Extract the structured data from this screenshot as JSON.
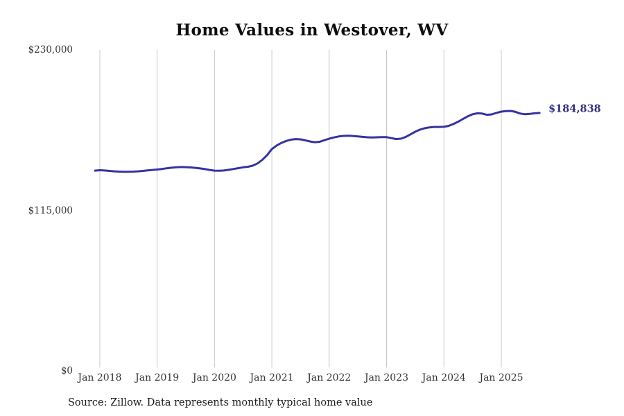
{
  "chart": {
    "title": "Home Values in Westover, WV",
    "source": "Source: Zillow. Data represents monthly typical home value",
    "end_label": "$184,838"
  },
  "colors": {
    "line": "#3533a0",
    "end_label": "#312d80",
    "grid": "#c8c8c8",
    "axis_text": "#333333",
    "title_text": "#0d0d0d",
    "background": "#ffffff"
  },
  "chart_data": {
    "type": "line",
    "title": "Home Values in Westover, WV",
    "xlabel": "",
    "ylabel": "",
    "ylim": [
      0,
      230000
    ],
    "grid": "vertical-only",
    "legend": "none",
    "y_ticks": [
      {
        "label": "$230,000",
        "value": 230000
      },
      {
        "label": "$115,000",
        "value": 115000
      },
      {
        "label": "$0",
        "value": 0
      }
    ],
    "x_ticks": [
      "Jan 2018",
      "Jan 2019",
      "Jan 2020",
      "Jan 2021",
      "Jan 2022",
      "Jan 2023",
      "Jan 2024",
      "Jan 2025"
    ],
    "latest": {
      "date": "2025-09",
      "value": 184838,
      "label": "$184,838"
    },
    "series": [
      {
        "name": "Monthly typical home value",
        "dates": [
          "2017-12",
          "2018-01",
          "2018-02",
          "2018-03",
          "2018-04",
          "2018-05",
          "2018-06",
          "2018-07",
          "2018-08",
          "2018-09",
          "2018-10",
          "2018-11",
          "2018-12",
          "2019-01",
          "2019-02",
          "2019-03",
          "2019-04",
          "2019-05",
          "2019-06",
          "2019-07",
          "2019-08",
          "2019-09",
          "2019-10",
          "2019-11",
          "2019-12",
          "2020-01",
          "2020-02",
          "2020-03",
          "2020-04",
          "2020-05",
          "2020-06",
          "2020-07",
          "2020-08",
          "2020-09",
          "2020-10",
          "2020-11",
          "2020-12",
          "2021-01",
          "2021-02",
          "2021-03",
          "2021-04",
          "2021-05",
          "2021-06",
          "2021-07",
          "2021-08",
          "2021-09",
          "2021-10",
          "2021-11",
          "2021-12",
          "2022-01",
          "2022-02",
          "2022-03",
          "2022-04",
          "2022-05",
          "2022-06",
          "2022-07",
          "2022-08",
          "2022-09",
          "2022-10",
          "2022-11",
          "2022-12",
          "2023-01",
          "2023-02",
          "2023-03",
          "2023-04",
          "2023-05",
          "2023-06",
          "2023-07",
          "2023-08",
          "2023-09",
          "2023-10",
          "2023-11",
          "2023-12",
          "2024-01",
          "2024-02",
          "2024-03",
          "2024-04",
          "2024-05",
          "2024-06",
          "2024-07",
          "2024-08",
          "2024-09",
          "2024-10",
          "2024-11",
          "2024-12",
          "2025-01",
          "2025-02",
          "2025-03",
          "2025-04",
          "2025-05",
          "2025-06",
          "2025-07",
          "2025-08",
          "2025-09"
        ],
        "values": [
          143500,
          143800,
          143600,
          143300,
          143000,
          142800,
          142700,
          142700,
          142800,
          143000,
          143300,
          143700,
          144000,
          144300,
          144700,
          145200,
          145600,
          145900,
          146100,
          146000,
          145800,
          145500,
          145100,
          144600,
          144000,
          143500,
          143400,
          143600,
          144100,
          144700,
          145300,
          145900,
          146300,
          147100,
          148700,
          151200,
          154600,
          158900,
          161500,
          163400,
          164800,
          165700,
          166100,
          165900,
          165200,
          164400,
          163900,
          164200,
          165300,
          166400,
          167300,
          168000,
          168400,
          168500,
          168300,
          168000,
          167700,
          167400,
          167300,
          167400,
          167500,
          167500,
          166800,
          166100,
          166400,
          167600,
          169500,
          171400,
          172900,
          173900,
          174500,
          174800,
          174800,
          174900,
          175600,
          176900,
          178600,
          180500,
          182400,
          183900,
          184600,
          184400,
          183500,
          183800,
          184900,
          185800,
          186200,
          186300,
          185600,
          184400,
          183900,
          184200,
          184600,
          184838
        ]
      }
    ]
  }
}
